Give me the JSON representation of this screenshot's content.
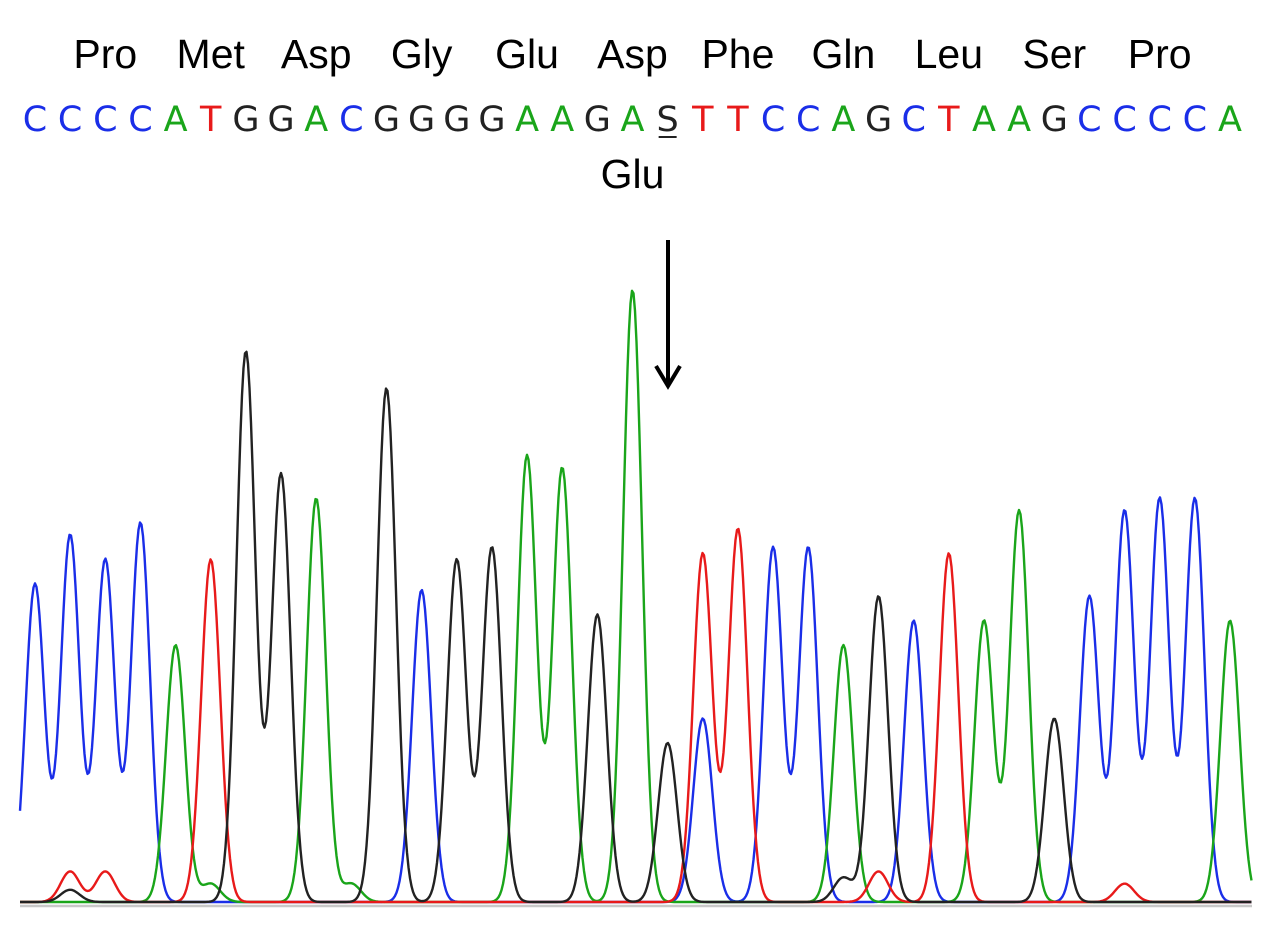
{
  "amino_acids_top": [
    "Pro",
    "Met",
    "Asp",
    "Gly",
    "Glu",
    "Asp",
    "Phe",
    "Gln",
    "Leu",
    "Ser",
    "Pro"
  ],
  "sequence": [
    "C",
    "C",
    "C",
    "C",
    "A",
    "T",
    "G",
    "G",
    "A",
    "C",
    "G",
    "G",
    "G",
    "G",
    "A",
    "A",
    "G",
    "A",
    "S",
    "T",
    "T",
    "C",
    "C",
    "A",
    "G",
    "C",
    "T",
    "A",
    "A",
    "G",
    "C",
    "C",
    "C",
    "C",
    "A"
  ],
  "variant_index": 18,
  "amino_acid_variant": "Glu",
  "base_colors": {
    "A": "#1aa51a",
    "C": "#1a2ee8",
    "G": "#222222",
    "T": "#e81a1a",
    "S": "#222222"
  },
  "chromatogram": {
    "baseline_color": "#c8c8c8",
    "channels": [
      {
        "base": "C",
        "color": "#1a2ee8",
        "peaks": [
          [
            0,
            0.52
          ],
          [
            1,
            0.6
          ],
          [
            2,
            0.56
          ],
          [
            3,
            0.62
          ],
          [
            11,
            0.51
          ],
          [
            21,
            0.58
          ],
          [
            22,
            0.58
          ],
          [
            25,
            0.46
          ],
          [
            30,
            0.5
          ],
          [
            31,
            0.64
          ],
          [
            32,
            0.66
          ],
          [
            33,
            0.66
          ],
          [
            19,
            0.3
          ]
        ]
      },
      {
        "base": "A",
        "color": "#1aa51a",
        "peaks": [
          [
            4,
            0.42
          ],
          [
            8,
            0.66
          ],
          [
            14,
            0.73
          ],
          [
            15,
            0.71
          ],
          [
            17,
            1.0
          ],
          [
            23,
            0.42
          ],
          [
            27,
            0.46
          ],
          [
            28,
            0.64
          ],
          [
            34,
            0.46
          ],
          [
            5,
            0.03
          ],
          [
            9,
            0.03
          ]
        ]
      },
      {
        "base": "T",
        "color": "#e81a1a",
        "peaks": [
          [
            5,
            0.56
          ],
          [
            19,
            0.57
          ],
          [
            20,
            0.61
          ],
          [
            26,
            0.57
          ],
          [
            1,
            0.05
          ],
          [
            2,
            0.05
          ],
          [
            24,
            0.05
          ],
          [
            31,
            0.03
          ]
        ]
      },
      {
        "base": "G",
        "color": "#222222",
        "peaks": [
          [
            6,
            0.9
          ],
          [
            7,
            0.7
          ],
          [
            10,
            0.84
          ],
          [
            12,
            0.56
          ],
          [
            13,
            0.58
          ],
          [
            16,
            0.47
          ],
          [
            18,
            0.26
          ],
          [
            24,
            0.5
          ],
          [
            29,
            0.3
          ],
          [
            1,
            0.02
          ],
          [
            23,
            0.04
          ]
        ]
      }
    ]
  }
}
